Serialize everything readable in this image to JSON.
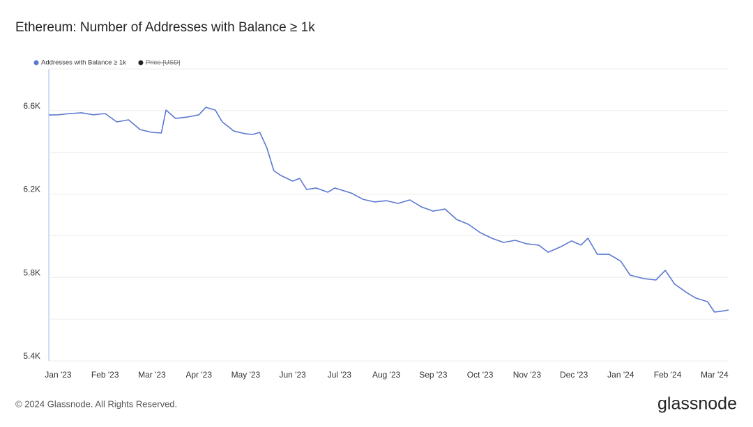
{
  "chart_data": {
    "type": "line",
    "title": "Ethereum: Number of Addresses with Balance ≥ 1k",
    "x": [
      -0.2,
      0,
      0.25,
      0.5,
      0.75,
      1.0,
      1.25,
      1.5,
      1.75,
      2.0,
      2.2,
      2.3,
      2.5,
      2.75,
      3.0,
      3.15,
      3.35,
      3.5,
      3.75,
      4.0,
      4.15,
      4.3,
      4.45,
      4.6,
      4.75,
      5.0,
      5.15,
      5.3,
      5.5,
      5.75,
      5.9,
      6.25,
      6.5,
      6.75,
      7.0,
      7.25,
      7.5,
      7.75,
      8.0,
      8.25,
      8.5,
      8.75,
      9.0,
      9.25,
      9.5,
      9.75,
      10.0,
      10.25,
      10.45,
      10.7,
      10.95,
      11.15,
      11.3,
      11.5,
      11.75,
      12.0,
      12.2,
      12.5,
      12.75,
      12.95,
      13.15,
      13.4,
      13.6,
      13.85,
      14.0,
      14.15,
      14.3
    ],
    "series": [
      {
        "name": "Addresses with Balance ≥ 1k",
        "color": "#5b78cf",
        "values": [
          6579,
          6580,
          6586,
          6590,
          6580,
          6586,
          6546,
          6556,
          6509,
          6496,
          6493,
          6603,
          6563,
          6569,
          6580,
          6616,
          6603,
          6546,
          6502,
          6489,
          6486,
          6496,
          6422,
          6312,
          6289,
          6262,
          6275,
          6222,
          6229,
          6209,
          6229,
          6205,
          6175,
          6162,
          6168,
          6155,
          6172,
          6138,
          6118,
          6128,
          6078,
          6055,
          6015,
          5988,
          5968,
          5978,
          5961,
          5955,
          5921,
          5945,
          5975,
          5955,
          5988,
          5911,
          5911,
          5878,
          5811,
          5794,
          5788,
          5834,
          5768,
          5728,
          5701,
          5684,
          5634,
          5638,
          5644
        ]
      },
      {
        "name": "Price [USD]",
        "color": "#222222",
        "hidden": true
      }
    ],
    "xlim": [
      -0.2,
      14.3
    ],
    "xticks": [
      {
        "value": 0,
        "label": "Jan '23"
      },
      {
        "value": 1,
        "label": "Feb '23"
      },
      {
        "value": 2,
        "label": "Mar '23"
      },
      {
        "value": 3,
        "label": "Apr '23"
      },
      {
        "value": 4,
        "label": "May '23"
      },
      {
        "value": 5,
        "label": "Jun '23"
      },
      {
        "value": 6,
        "label": "Jul '23"
      },
      {
        "value": 7,
        "label": "Aug '23"
      },
      {
        "value": 8,
        "label": "Sep '23"
      },
      {
        "value": 9,
        "label": "Oct '23"
      },
      {
        "value": 10,
        "label": "Nov '23"
      },
      {
        "value": 11,
        "label": "Dec '23"
      },
      {
        "value": 12,
        "label": "Jan '24"
      },
      {
        "value": 13,
        "label": "Feb '24"
      },
      {
        "value": 14,
        "label": "Mar '24"
      }
    ],
    "ylim": [
      5400,
      6800
    ],
    "yticks": [
      {
        "value": 5400,
        "label": "5.4K"
      },
      {
        "value": 5800,
        "label": "5.8K"
      },
      {
        "value": 6200,
        "label": "6.2K"
      },
      {
        "value": 6600,
        "label": "6.6K"
      }
    ],
    "minor_yticks": [
      5600,
      6000,
      6400,
      6800
    ],
    "grid": true,
    "legend": "top-left"
  },
  "footer": {
    "copyright": "© 2024 Glassnode. All Rights Reserved.",
    "logo": "glassnode"
  }
}
